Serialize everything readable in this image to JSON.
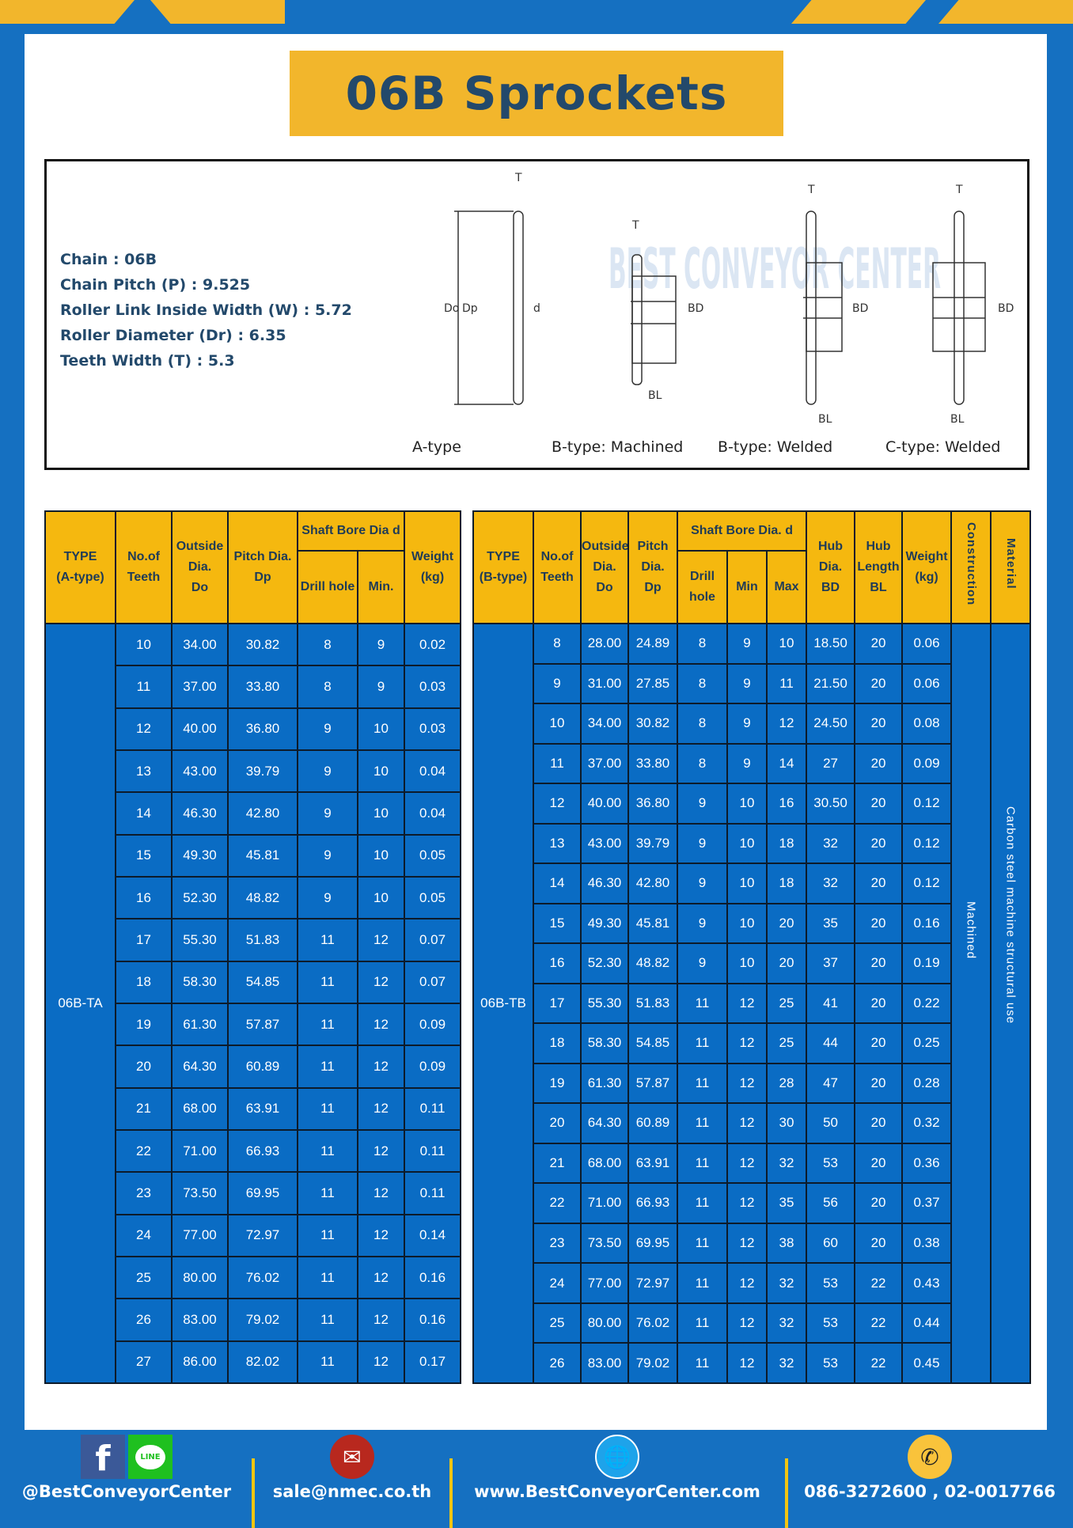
{
  "title": "06B Sprockets",
  "specs": [
    {
      "label": "Chain",
      "value": "06B"
    },
    {
      "label": "Chain Pitch (P)",
      "value": "9.525"
    },
    {
      "label": "Roller Link Inside Width (W)",
      "value": "5.72"
    },
    {
      "label": "Roller Diameter (Dr)",
      "value": "6.35"
    },
    {
      "label": "Teeth Width (T)",
      "value": "5.3"
    }
  ],
  "diagram": {
    "captions": [
      "A-type",
      "B-type: Machined",
      "B-type: Welded",
      "C-type: Welded"
    ],
    "labels": {
      "t": "T",
      "do": "Do",
      "dp": "Dp",
      "d": "d",
      "bd": "BD",
      "bl": "BL"
    },
    "watermark": "BEST CONVEYOR CENTER"
  },
  "tableA": {
    "headers": {
      "type": "TYPE\n(A-type)",
      "teeth": "No.of\nTeeth",
      "outside": "Outside\nDia.\nDo",
      "pitch": "Pitch Dia.\nDp",
      "shaft": "Shaft Bore Dia d",
      "drill": "Drill hole",
      "min": "Min.",
      "weight": "Weight\n(kg)"
    },
    "type": "06B-TA",
    "rows": [
      [
        "10",
        "34.00",
        "30.82",
        "8",
        "9",
        "0.02"
      ],
      [
        "11",
        "37.00",
        "33.80",
        "8",
        "9",
        "0.03"
      ],
      [
        "12",
        "40.00",
        "36.80",
        "9",
        "10",
        "0.03"
      ],
      [
        "13",
        "43.00",
        "39.79",
        "9",
        "10",
        "0.04"
      ],
      [
        "14",
        "46.30",
        "42.80",
        "9",
        "10",
        "0.04"
      ],
      [
        "15",
        "49.30",
        "45.81",
        "9",
        "10",
        "0.05"
      ],
      [
        "16",
        "52.30",
        "48.82",
        "9",
        "10",
        "0.05"
      ],
      [
        "17",
        "55.30",
        "51.83",
        "11",
        "12",
        "0.07"
      ],
      [
        "18",
        "58.30",
        "54.85",
        "11",
        "12",
        "0.07"
      ],
      [
        "19",
        "61.30",
        "57.87",
        "11",
        "12",
        "0.09"
      ],
      [
        "20",
        "64.30",
        "60.89",
        "11",
        "12",
        "0.09"
      ],
      [
        "21",
        "68.00",
        "63.91",
        "11",
        "12",
        "0.11"
      ],
      [
        "22",
        "71.00",
        "66.93",
        "11",
        "12",
        "0.11"
      ],
      [
        "23",
        "73.50",
        "69.95",
        "11",
        "12",
        "0.11"
      ],
      [
        "24",
        "77.00",
        "72.97",
        "11",
        "12",
        "0.14"
      ],
      [
        "25",
        "80.00",
        "76.02",
        "11",
        "12",
        "0.16"
      ],
      [
        "26",
        "83.00",
        "79.02",
        "11",
        "12",
        "0.16"
      ],
      [
        "27",
        "86.00",
        "82.02",
        "11",
        "12",
        "0.17"
      ]
    ]
  },
  "tableB": {
    "headers": {
      "type": "TYPE\n(B-type)",
      "teeth": "No.of\nTeeth",
      "outside": "Outside\nDia.\nDo",
      "pitch": "Pitch\nDia.\nDp",
      "shaft": "Shaft Bore Dia. d",
      "drill": "Drill hole",
      "min": "Min",
      "max": "Max",
      "hubdia": "Hub\nDia.\nBD",
      "hublen": "Hub\nLength\nBL",
      "weight": "Weight\n(kg)",
      "construction": "Construction",
      "material": "Material"
    },
    "type": "06B-TB",
    "construction": "Machined",
    "material": "Carbon steel machine structural use",
    "rows": [
      [
        "8",
        "28.00",
        "24.89",
        "8",
        "9",
        "10",
        "18.50",
        "20",
        "0.06"
      ],
      [
        "9",
        "31.00",
        "27.85",
        "8",
        "9",
        "11",
        "21.50",
        "20",
        "0.06"
      ],
      [
        "10",
        "34.00",
        "30.82",
        "8",
        "9",
        "12",
        "24.50",
        "20",
        "0.08"
      ],
      [
        "11",
        "37.00",
        "33.80",
        "8",
        "9",
        "14",
        "27",
        "20",
        "0.09"
      ],
      [
        "12",
        "40.00",
        "36.80",
        "9",
        "10",
        "16",
        "30.50",
        "20",
        "0.12"
      ],
      [
        "13",
        "43.00",
        "39.79",
        "9",
        "10",
        "18",
        "32",
        "20",
        "0.12"
      ],
      [
        "14",
        "46.30",
        "42.80",
        "9",
        "10",
        "18",
        "32",
        "20",
        "0.12"
      ],
      [
        "15",
        "49.30",
        "45.81",
        "9",
        "10",
        "20",
        "35",
        "20",
        "0.16"
      ],
      [
        "16",
        "52.30",
        "48.82",
        "9",
        "10",
        "20",
        "37",
        "20",
        "0.19"
      ],
      [
        "17",
        "55.30",
        "51.83",
        "11",
        "12",
        "25",
        "41",
        "20",
        "0.22"
      ],
      [
        "18",
        "58.30",
        "54.85",
        "11",
        "12",
        "25",
        "44",
        "20",
        "0.25"
      ],
      [
        "19",
        "61.30",
        "57.87",
        "11",
        "12",
        "28",
        "47",
        "20",
        "0.28"
      ],
      [
        "20",
        "64.30",
        "60.89",
        "11",
        "12",
        "30",
        "50",
        "20",
        "0.32"
      ],
      [
        "21",
        "68.00",
        "63.91",
        "11",
        "12",
        "32",
        "53",
        "20",
        "0.36"
      ],
      [
        "22",
        "71.00",
        "66.93",
        "11",
        "12",
        "35",
        "56",
        "20",
        "0.37"
      ],
      [
        "23",
        "73.50",
        "69.95",
        "11",
        "12",
        "38",
        "60",
        "20",
        "0.38"
      ],
      [
        "24",
        "77.00",
        "72.97",
        "11",
        "12",
        "32",
        "53",
        "22",
        "0.43"
      ],
      [
        "25",
        "80.00",
        "76.02",
        "11",
        "12",
        "32",
        "53",
        "22",
        "0.44"
      ],
      [
        "26",
        "83.00",
        "79.02",
        "11",
        "12",
        "32",
        "53",
        "22",
        "0.45"
      ]
    ]
  },
  "footer": {
    "social": "@BestConveyorCenter",
    "line_badge": "LINE",
    "facebook_glyph": "f",
    "email": "sale@nmec.co.th",
    "website": "www.BestConveyorCenter.com",
    "phone": "086-3272600 , 02-0017766"
  },
  "colors": {
    "background": "#1570c1",
    "accent": "#f2b62c",
    "header": "#f5b80f",
    "cell": "#0a6cc4",
    "text": "#23496b"
  }
}
